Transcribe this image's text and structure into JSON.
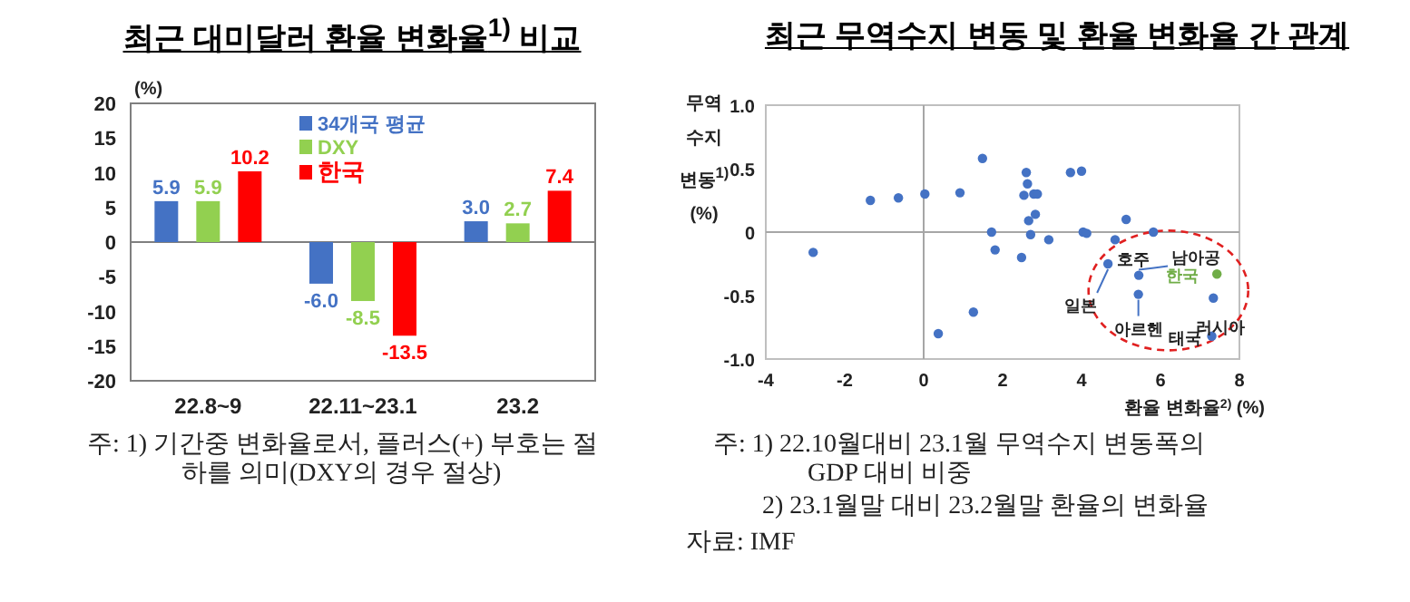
{
  "chart_data": [
    {
      "type": "bar",
      "title": "최근 대미달러 환율 변화율$^{1)}$ 비교",
      "ylabel": "(%)",
      "categories": [
        "22.8~9",
        "22.11~23.1",
        "23.2"
      ],
      "series": [
        {
          "name": "34개국 평균",
          "color": "#4472c4",
          "values": [
            5.9,
            -6.0,
            3.0
          ],
          "value_labels": [
            "5.9",
            "-6.0",
            "3.0"
          ]
        },
        {
          "name": "DXY",
          "color": "#92d050",
          "values": [
            5.9,
            -8.5,
            2.7
          ],
          "value_labels": [
            "5.9",
            "-8.5",
            "2.7"
          ]
        },
        {
          "name": "한국",
          "color": "#ff0000",
          "values": [
            10.2,
            -13.5,
            7.4
          ],
          "value_labels": [
            "10.2",
            "-13.5",
            "7.4"
          ]
        }
      ],
      "ylim": [
        -20,
        20
      ],
      "yticks": [
        -20,
        -15,
        -10,
        -5,
        0,
        5,
        10,
        15,
        20
      ],
      "legend": "top",
      "grid": false,
      "ref_lines": [
        {
          "axis": "y",
          "value": 0,
          "color": "#7f7f7f"
        }
      ],
      "annotations": [
        "주: 1) 기간중 변화율로서, 플러스(+) 부호는 절하를 의미(DXY의 경우 절상)"
      ]
    },
    {
      "type": "scatter",
      "title": "최근 무역수지 변동 및 환율 변화율 간 관계",
      "ylabel": "무역수지 변동$^{1)}$ (%)",
      "xlabel": "환율 변화율$^{2)}$ (%)",
      "series": [
        {
          "color": "#4472c4",
          "x": [
            -2.8,
            -1.35,
            -0.64,
            0.03,
            0.92,
            1.49,
            2.6,
            2.63,
            2.54,
            2.79,
            2.88,
            2.83,
            2.66,
            3.72,
            4.0,
            5.13,
            1.72,
            1.81,
            2.71,
            3.17,
            2.48,
            4.04,
            4.13,
            4.85,
            5.82,
            1.26,
            0.37,
            4.67,
            5.45,
            5.44,
            7.34,
            7.3
          ],
          "values": [
            -0.16,
            0.25,
            0.27,
            0.3,
            0.31,
            0.58,
            0.47,
            0.38,
            0.29,
            0.3,
            0.3,
            0.14,
            0.09,
            0.47,
            0.48,
            0.1,
            0.0,
            -0.14,
            -0.02,
            -0.06,
            -0.2,
            0.0,
            -0.01,
            -0.06,
            0.0,
            -0.63,
            -0.8,
            -0.25,
            -0.34,
            -0.49,
            -0.52,
            -0.82
          ]
        },
        {
          "color": "#70ad47",
          "x": [
            7.43
          ],
          "values": [
            -0.33
          ]
        }
      ],
      "xlim": [
        -4,
        8
      ],
      "xticks": [
        -4,
        -2,
        0,
        2,
        4,
        6,
        8
      ],
      "ylim": [
        -1,
        1
      ],
      "yticks": [
        {
          "value": -1,
          "label": "-1.0"
        },
        {
          "value": -0.5,
          "label": "-0.5"
        },
        0,
        0.5,
        {
          "value": 1,
          "label": "1.0"
        }
      ],
      "ref_lines": [
        {
          "axis": "x",
          "value": 0,
          "color": "#a6a6a6"
        },
        {
          "axis": "y",
          "value": 0,
          "color": "#a6a6a6"
        }
      ],
      "marker": "circle",
      "grid": false,
      "annotations": [
        {
          "text": "호주",
          "x": 4.85,
          "y": -0.06
        },
        {
          "text": "일본",
          "x": 4.67,
          "y": -0.25
        },
        {
          "text": "남아공",
          "x": 5.45,
          "y": -0.34
        },
        {
          "text": "아르헨",
          "x": 5.44,
          "y": -0.49
        },
        {
          "text": "한국",
          "x": 7.43,
          "y": -0.33
        },
        {
          "text": "러시아",
          "x": 7.34,
          "y": -0.52
        },
        {
          "text": "태국",
          "x": 7.3,
          "y": -0.82
        },
        "주: 1) 22.10월대비 23.1월 무역수지 변동폭의 GDP 대비 비중",
        "2) 23.1월말 대비 23.2월말 환율의 변화율",
        "자료: IMF"
      ]
    }
  ]
}
